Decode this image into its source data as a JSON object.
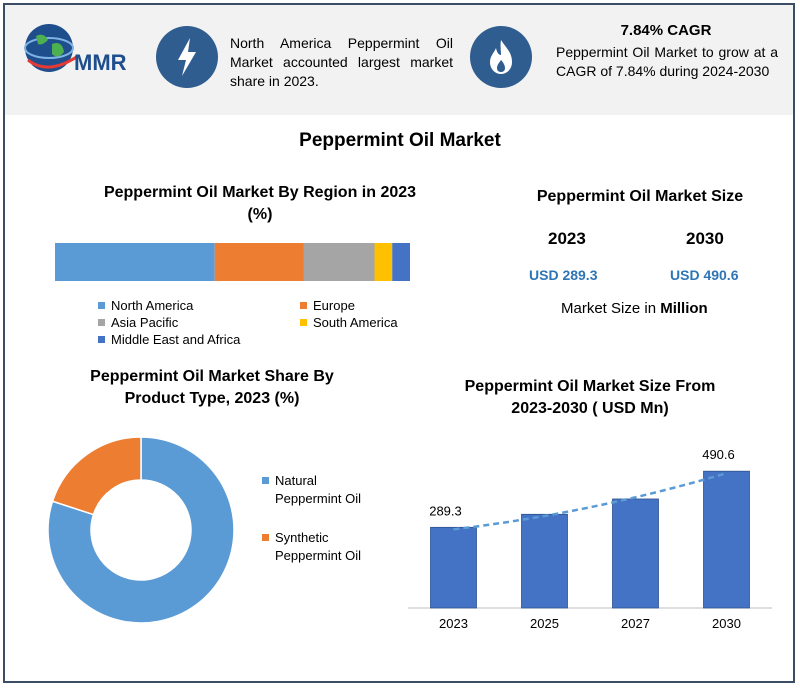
{
  "header": {
    "logo_text": "MMR",
    "fact1": "North America Peppermint Oil Market accounted largest market share in 2023.",
    "cagr_title": "7.84% CAGR",
    "cagr_text": "Peppermint Oil Market to grow at a CAGR of 7.84% during 2024-2030",
    "icons": [
      "lightning-bolt-icon",
      "flame-icon",
      "globe-icon"
    ]
  },
  "main_title": "Peppermint Oil Market",
  "region": {
    "title_line1": "Peppermint Oil Market By Region in 2023",
    "title_line2": "(%)"
  },
  "size": {
    "title": "Peppermint Oil Market Size",
    "year_start": "2023",
    "year_end": "2030",
    "value_start": "USD 289.3",
    "value_end": "USD 490.6",
    "note_prefix": "Market Size in ",
    "note_unit": "Million"
  },
  "product": {
    "title_line1": "Peppermint Oil Market Share By",
    "title_line2": "Product Type, 2023 (%)"
  },
  "growth": {
    "title_line1": "Peppermint Oil Market Size From",
    "title_line2": "2023-2030 ( USD Mn)"
  },
  "chart_data": [
    {
      "type": "bar",
      "orientation": "horizontal-stacked",
      "title": "Peppermint Oil Market By Region in 2023 (%)",
      "series": [
        {
          "name": "North America",
          "value": 45,
          "color": "#5b9bd5"
        },
        {
          "name": "Europe",
          "value": 25,
          "color": "#ed7d31"
        },
        {
          "name": "Asia Pacific",
          "value": 20,
          "color": "#a5a5a5"
        },
        {
          "name": "South America",
          "value": 5,
          "color": "#ffc000"
        },
        {
          "name": "Middle East and Africa",
          "value": 5,
          "color": "#4472c4"
        }
      ],
      "legend_position": "bottom"
    },
    {
      "type": "pie",
      "donut": true,
      "title": "Peppermint Oil Market Share By Product Type, 2023 (%)",
      "slices": [
        {
          "name": "Natural Peppermint Oil",
          "label_line1": "Natural",
          "label_line2": "Peppermint Oil",
          "value": 80,
          "color": "#5b9bd5"
        },
        {
          "name": "Synthetic Peppermint Oil",
          "label_line1": "Synthetic",
          "label_line2": "Peppermint Oil",
          "value": 20,
          "color": "#ed7d31"
        }
      ],
      "legend_position": "right"
    },
    {
      "type": "bar",
      "title": "Peppermint Oil Market Size From 2023-2030 ( USD Mn)",
      "categories": [
        "2023",
        "2025",
        "2027",
        "2030"
      ],
      "values": [
        289.3,
        336,
        391,
        490.6
      ],
      "data_labels": [
        "289.3",
        "",
        "",
        "490.6"
      ],
      "ylim": [
        0,
        520
      ],
      "color": "#4472c4",
      "trendline": {
        "style": "dashed",
        "color": "#5b9bd5"
      },
      "grid": false
    }
  ]
}
